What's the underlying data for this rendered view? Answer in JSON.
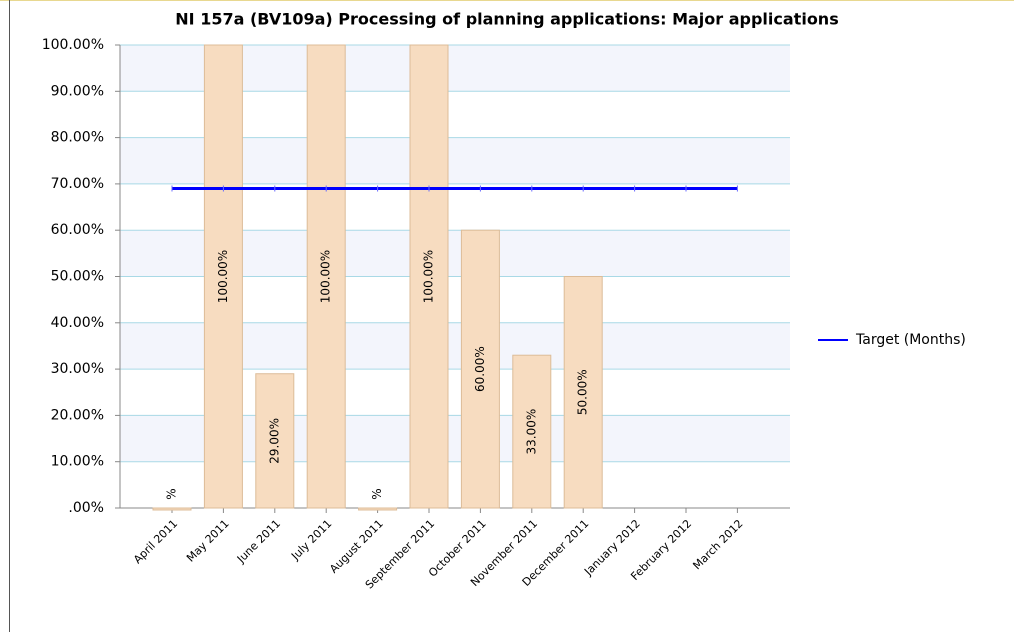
{
  "chart_data": {
    "type": "bar",
    "title": "NI 157a (BV109a) Processing of planning applications: Major applications",
    "categories": [
      "April 2011",
      "May 2011",
      "June 2011",
      "July 2011",
      "August 2011",
      "September 2011",
      "October 2011",
      "November 2011",
      "December 2011",
      "January 2012",
      "February 2012",
      "March 2012"
    ],
    "values": [
      0,
      100,
      29,
      100,
      0,
      100,
      60,
      33,
      50,
      null,
      null,
      null
    ],
    "value_labels": [
      "%",
      "100.00%",
      "29.00%",
      "100.00%",
      "%",
      "100.00%",
      "60.00%",
      "33.00%",
      "50.00%",
      null,
      null,
      null
    ],
    "color": "#f7dcc0",
    "series": [
      {
        "name": "Target (Months)",
        "color": "#0000ff",
        "type": "line",
        "values": [
          69,
          69,
          69,
          69,
          69,
          69,
          69,
          69,
          69,
          69,
          69,
          69
        ]
      }
    ],
    "ylim": [
      0,
      100
    ],
    "yticks": [
      {
        "value": 0,
        "label": ".00%"
      },
      {
        "value": 10,
        "label": "10.00%"
      },
      {
        "value": 20,
        "label": "20.00%"
      },
      {
        "value": 30,
        "label": "30.00%"
      },
      {
        "value": 40,
        "label": "40.00%"
      },
      {
        "value": 50,
        "label": "50.00%"
      },
      {
        "value": 60,
        "label": "60.00%"
      },
      {
        "value": 70,
        "label": "70.00%"
      },
      {
        "value": 80,
        "label": "80.00%"
      },
      {
        "value": 90,
        "label": "90.00%"
      },
      {
        "value": 100,
        "label": "100.00%"
      }
    ],
    "grid": true,
    "legend": "right"
  }
}
